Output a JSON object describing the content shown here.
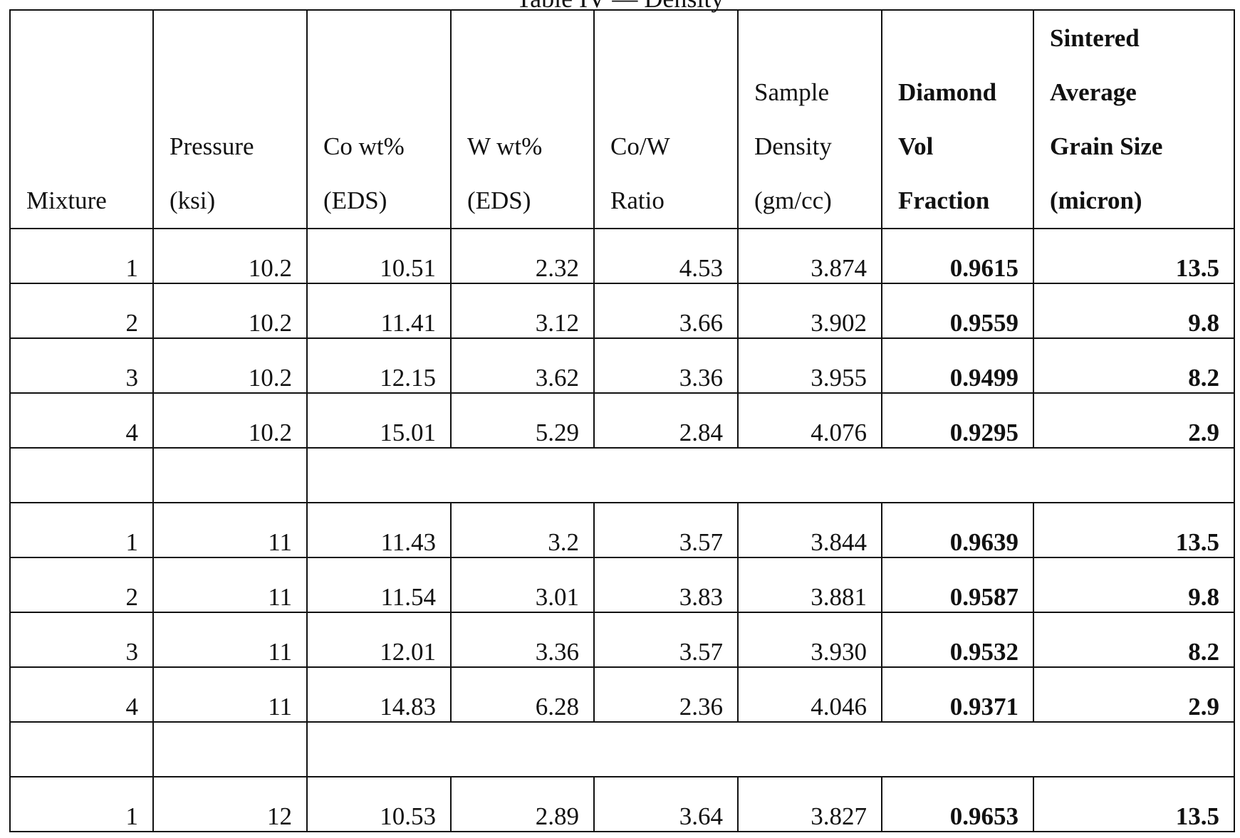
{
  "title": "Table IV — Density",
  "table": {
    "header": [
      [
        "Mixture"
      ],
      [
        "Pressure",
        "(ksi)"
      ],
      [
        "Co wt%",
        "(EDS)"
      ],
      [
        "W wt%",
        "(EDS)"
      ],
      [
        "Co/W",
        "Ratio"
      ],
      [
        "Sample",
        "Density",
        "(gm/cc)"
      ],
      [
        "Diamond",
        "Vol",
        "Fraction"
      ],
      [
        "Sintered",
        "Average",
        "Grain Size",
        "(micron)"
      ]
    ],
    "groups": [
      [
        [
          "1",
          "10.2",
          "10.51",
          "2.32",
          "4.53",
          "3.874",
          "0.9615",
          "13.5"
        ],
        [
          "2",
          "10.2",
          "11.41",
          "3.12",
          "3.66",
          "3.902",
          "0.9559",
          "9.8"
        ],
        [
          "3",
          "10.2",
          "12.15",
          "3.62",
          "3.36",
          "3.955",
          "0.9499",
          "8.2"
        ],
        [
          "4",
          "10.2",
          "15.01",
          "5.29",
          "2.84",
          "4.076",
          "0.9295",
          "2.9"
        ]
      ],
      [
        [
          "1",
          "11",
          "11.43",
          "3.2",
          "3.57",
          "3.844",
          "0.9639",
          "13.5"
        ],
        [
          "2",
          "11",
          "11.54",
          "3.01",
          "3.83",
          "3.881",
          "0.9587",
          "9.8"
        ],
        [
          "3",
          "11",
          "12.01",
          "3.36",
          "3.57",
          "3.930",
          "0.9532",
          "8.2"
        ],
        [
          "4",
          "11",
          "14.83",
          "6.28",
          "2.36",
          "4.046",
          "0.9371",
          "2.9"
        ]
      ],
      [
        [
          "1",
          "12",
          "10.53",
          "2.89",
          "3.64",
          "3.827",
          "0.9653",
          "13.5"
        ]
      ]
    ]
  }
}
